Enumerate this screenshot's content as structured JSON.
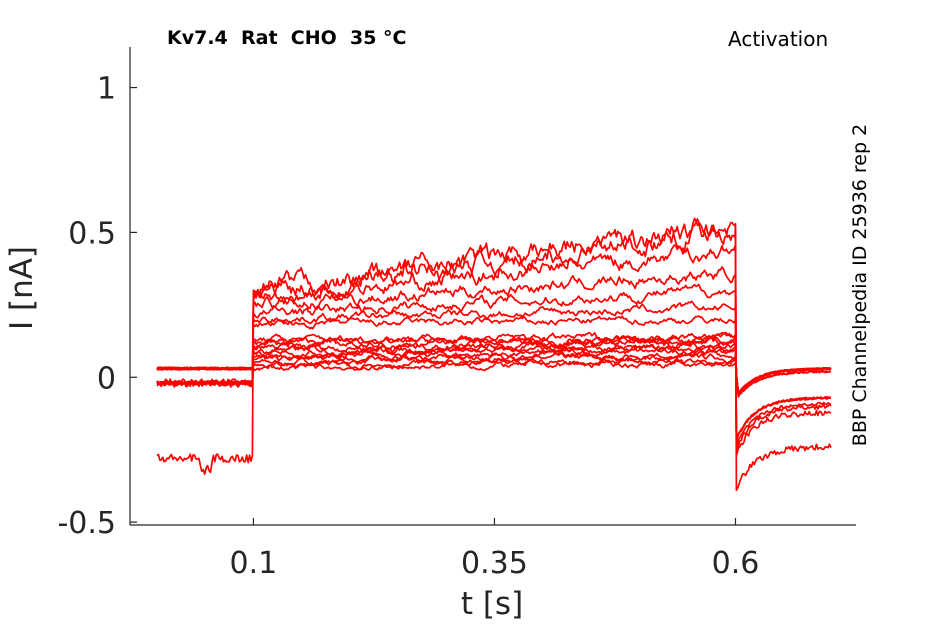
{
  "header": {
    "title": "Kv7.4  Rat  CHO  35 °C",
    "protocol": "Activation",
    "source": "BBP Channelpedia ID 25936 rep 2"
  },
  "chart_data": {
    "type": "line",
    "xlabel": "t [s]",
    "ylabel": "I [nA]",
    "xlim": [
      -0.028,
      0.725
    ],
    "ylim": [
      -0.51,
      1.14
    ],
    "xticks": [
      0.1,
      0.35,
      0.6
    ],
    "xtick_labels": [
      "0.1",
      "0.35",
      "0.6"
    ],
    "yticks": [
      -0.5,
      0,
      0.5,
      1
    ],
    "ytick_labels": [
      "-0.5",
      "0",
      "0.5",
      "1"
    ],
    "grid": false,
    "line_color": "#ff0000",
    "step_on": 0.1,
    "step_off": 0.6,
    "x_start": 0.0,
    "x_end": 0.7,
    "series": [
      {
        "hold": 0.03,
        "on": 0.05,
        "end": 0.07,
        "decay": 0.03,
        "noise": 0.006
      },
      {
        "hold": 0.03,
        "on": 0.06,
        "end": 0.08,
        "decay": 0.03,
        "noise": 0.006
      },
      {
        "hold": 0.03,
        "on": 0.07,
        "end": 0.09,
        "decay": 0.03,
        "noise": 0.006
      },
      {
        "hold": 0.03,
        "on": 0.08,
        "end": 0.1,
        "decay": 0.03,
        "noise": 0.006
      },
      {
        "hold": 0.03,
        "on": 0.09,
        "end": 0.11,
        "decay": 0.03,
        "noise": 0.007
      },
      {
        "hold": 0.03,
        "on": 0.1,
        "end": 0.12,
        "decay": 0.03,
        "noise": 0.007
      },
      {
        "hold": 0.03,
        "on": 0.11,
        "end": 0.13,
        "decay": 0.03,
        "noise": 0.007
      },
      {
        "hold": 0.03,
        "on": 0.12,
        "end": 0.13,
        "decay": 0.03,
        "noise": 0.007
      },
      {
        "hold": -0.02,
        "on": 0.04,
        "end": 0.06,
        "decay": 0.02,
        "noise": 0.006
      },
      {
        "hold": -0.02,
        "on": 0.03,
        "end": 0.05,
        "decay": 0.02,
        "noise": 0.006
      },
      {
        "hold": -0.02,
        "on": 0.13,
        "end": 0.14,
        "decay": 0.03,
        "noise": 0.007
      },
      {
        "hold": -0.02,
        "on": 0.18,
        "end": 0.2,
        "decay": -0.12,
        "noise": 0.007
      },
      {
        "hold": -0.02,
        "on": 0.2,
        "end": 0.24,
        "decay": -0.12,
        "noise": 0.008
      },
      {
        "hold": -0.02,
        "on": 0.22,
        "end": 0.3,
        "decay": -0.12,
        "noise": 0.01
      },
      {
        "hold": -0.02,
        "on": 0.25,
        "end": 0.36,
        "decay": -0.14,
        "noise": 0.012
      },
      {
        "hold": -0.02,
        "on": 0.27,
        "end": 0.44,
        "decay": -0.15,
        "noise": 0.015
      },
      {
        "hold": -0.02,
        "on": 0.29,
        "end": 0.51,
        "decay": -0.17,
        "noise": 0.02
      },
      {
        "hold": -0.28,
        "on": 0.3,
        "end": 0.53,
        "decay": -0.29,
        "noise": 0.022
      }
    ]
  }
}
